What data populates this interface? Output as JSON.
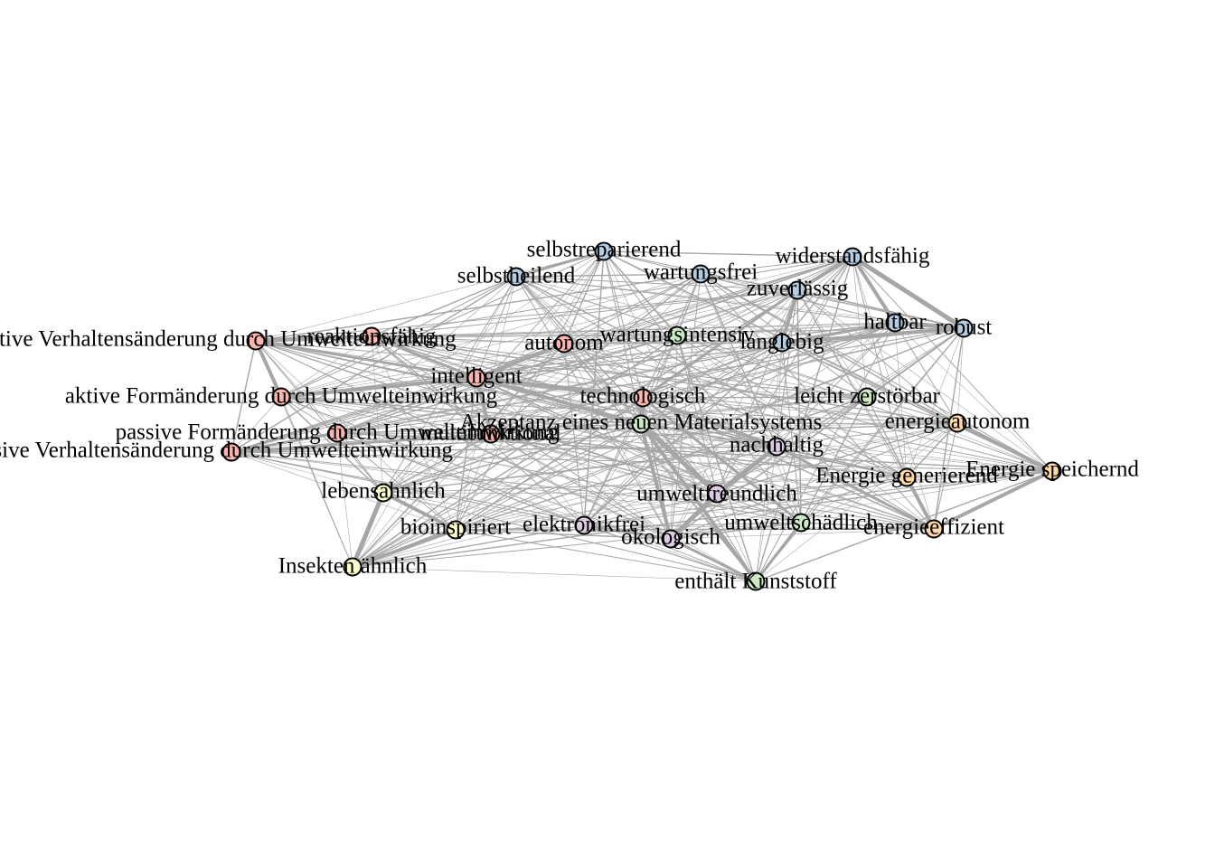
{
  "network": {
    "colors": {
      "blue": "#b3cde3",
      "red": "#fbb4ae",
      "green": "#ccebc5",
      "yellow": "#ffffcc",
      "purple": "#decbe4",
      "orange": "#fed9a6",
      "edge": "#a6a6a6"
    },
    "nodes": [
      {
        "id": "selbstreparierend",
        "label": "selbstreparierend",
        "group": "blue"
      },
      {
        "id": "selbstheilend",
        "label": "selbstheilend",
        "group": "blue"
      },
      {
        "id": "wartungsfrei",
        "label": "wartungsfrei",
        "group": "blue"
      },
      {
        "id": "widerstandsfaehig",
        "label": "widerstandsfähig",
        "group": "blue"
      },
      {
        "id": "zuverlaessig",
        "label": "zuverlässig",
        "group": "blue"
      },
      {
        "id": "haltbar",
        "label": "haltbar",
        "group": "blue"
      },
      {
        "id": "robust",
        "label": "robust",
        "group": "blue"
      },
      {
        "id": "langlebig",
        "label": "langlebig",
        "group": "blue"
      },
      {
        "id": "aktive_verhalten",
        "label": "aktive Verhaltensänderung durch Umwelteinwirkung",
        "group": "red"
      },
      {
        "id": "reaktionsfaehig",
        "label": "reaktionsfähig",
        "group": "red"
      },
      {
        "id": "autonom",
        "label": "autonom",
        "group": "red"
      },
      {
        "id": "intelligent",
        "label": "intelligent",
        "group": "red"
      },
      {
        "id": "aktive_form",
        "label": "aktive Formänderung durch Umwelteinwirkung",
        "group": "red"
      },
      {
        "id": "technologisch",
        "label": "technologisch",
        "group": "red"
      },
      {
        "id": "passive_form",
        "label": "passive Formänderung durch Umwelteinwirkung",
        "group": "red"
      },
      {
        "id": "multifunktional",
        "label": "multifunktional",
        "group": "red"
      },
      {
        "id": "passive_verhalten",
        "label": "passive Verhaltensänderung durch Umwelteinwirkung",
        "group": "red"
      },
      {
        "id": "wartungsintensiv",
        "label": "wartungsintensiv",
        "group": "green"
      },
      {
        "id": "leicht_zerstoerbar",
        "label": "leicht zerstörbar",
        "group": "green"
      },
      {
        "id": "akzeptanz",
        "label": "Akzeptanz eines neuen Materialsystems",
        "group": "green"
      },
      {
        "id": "umweltschaedlich",
        "label": "umweltschädlich",
        "group": "green"
      },
      {
        "id": "enthaelt_kunststoff",
        "label": "enthält Kunststoff",
        "group": "green"
      },
      {
        "id": "nachhaltig",
        "label": "nachhaltig",
        "group": "purple"
      },
      {
        "id": "umweltfreundlich",
        "label": "umweltfreundlich",
        "group": "purple"
      },
      {
        "id": "elektronikfrei",
        "label": "elektronikfrei",
        "group": "purple"
      },
      {
        "id": "oekologisch",
        "label": "ökologisch",
        "group": "purple"
      },
      {
        "id": "lebensaehnlich",
        "label": "lebensähnlich",
        "group": "yellow"
      },
      {
        "id": "bioinspiriert",
        "label": "bioinspiriert",
        "group": "yellow"
      },
      {
        "id": "insekten_aehnlich",
        "label": "Insekten ähnlich",
        "group": "yellow"
      },
      {
        "id": "energieautonom",
        "label": "energieautonom",
        "group": "orange"
      },
      {
        "id": "energie_generierend",
        "label": "Energie generierend",
        "group": "orange"
      },
      {
        "id": "energie_speichernd",
        "label": "Energie speichernd",
        "group": "orange"
      },
      {
        "id": "energieeffizient",
        "label": "energieeffizient",
        "group": "orange"
      }
    ]
  }
}
